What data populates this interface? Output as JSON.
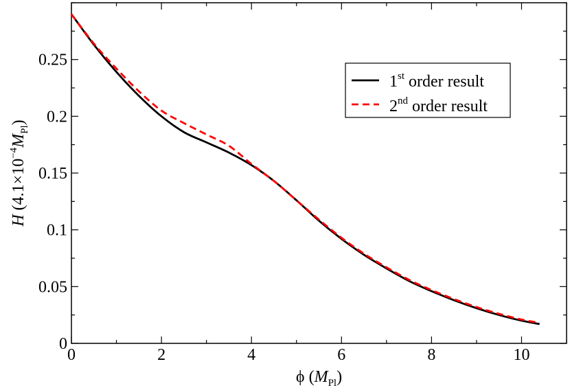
{
  "chart_data": {
    "type": "line",
    "title": "",
    "xlabel": {
      "symbol": "ϕ",
      "open": " (",
      "unit": "M",
      "unit_sub": "Pl",
      "close": ")"
    },
    "ylabel": {
      "symbol": "H",
      "open": " (4.1×10",
      "exp": "−4",
      "unit": "M",
      "unit_sub": "Pl",
      "close": ")"
    },
    "xlim": [
      0,
      11
    ],
    "ylim": [
      0,
      0.3
    ],
    "x_ticks": [
      0,
      2,
      4,
      6,
      8,
      10
    ],
    "x_tick_labels": [
      "0",
      "2",
      "4",
      "6",
      "8",
      "10"
    ],
    "y_ticks": [
      0,
      0.05,
      0.1,
      0.15,
      0.2,
      0.25
    ],
    "y_tick_labels": [
      "0",
      "0.05",
      "0.1",
      "0.15",
      "0.2",
      "0.25"
    ],
    "x_minor_step": 1,
    "y_minor_step": 0.025,
    "grid": false,
    "legend_position": "top-right",
    "series": [
      {
        "name_main": "1",
        "name_sup": "st",
        "name_rest": " order result",
        "color": "#000000",
        "dash": "solid",
        "x": [
          0,
          0.5,
          1,
          1.5,
          2,
          2.5,
          3,
          3.5,
          4,
          4.5,
          5,
          5.5,
          6,
          6.5,
          7,
          7.5,
          8,
          8.5,
          9,
          9.5,
          10,
          10.4
        ],
        "y": [
          0.29,
          0.263,
          0.239,
          0.218,
          0.2,
          0.186,
          0.177,
          0.168,
          0.157,
          0.143,
          0.126,
          0.108,
          0.092,
          0.078,
          0.066,
          0.055,
          0.046,
          0.038,
          0.031,
          0.025,
          0.02,
          0.017
        ]
      },
      {
        "name_main": "2",
        "name_sup": "nd",
        "name_rest": " order result",
        "color": "#ff0000",
        "dash": "dashed",
        "x": [
          0,
          0.5,
          1,
          1.5,
          2,
          2.5,
          3,
          3.5,
          4,
          4.5,
          5,
          5.5,
          6,
          6.5,
          7,
          7.5,
          8,
          8.5,
          9,
          9.5,
          10,
          10.4
        ],
        "y": [
          0.29,
          0.264,
          0.242,
          0.222,
          0.205,
          0.194,
          0.184,
          0.174,
          0.158,
          0.143,
          0.126,
          0.109,
          0.093,
          0.079,
          0.067,
          0.056,
          0.047,
          0.039,
          0.032,
          0.026,
          0.021,
          0.018
        ]
      }
    ]
  }
}
